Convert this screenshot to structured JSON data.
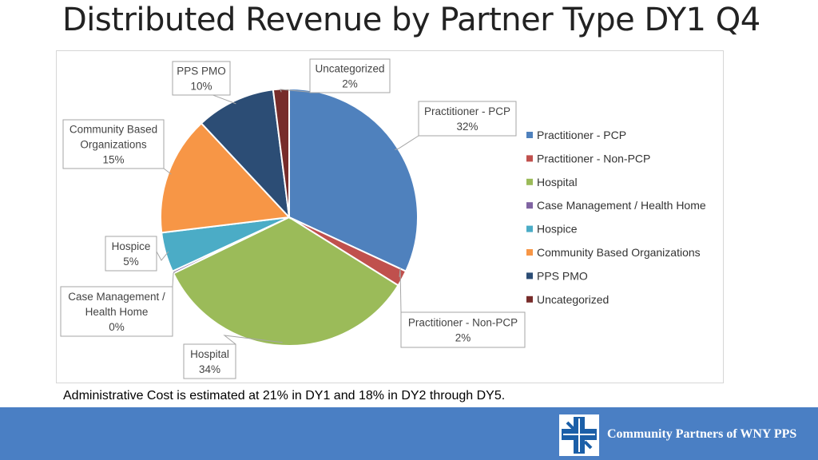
{
  "page": {
    "title": "Distributed Revenue by Partner Type DY1 Q4",
    "footnote": "Administrative Cost is estimated at 21% in DY1 and 18% in DY2 through DY5.",
    "footer_brand": "Community Partners of WNY PPS",
    "footer_color": "#4a7fc4"
  },
  "chart_data": {
    "type": "pie",
    "title": "",
    "legend_position": "right",
    "start_angle_deg": 0,
    "direction": "clockwise",
    "slices": [
      {
        "name": "Practitioner - PCP",
        "value": 32,
        "label_value": "32%",
        "color": "#4f81bd"
      },
      {
        "name": "Practitioner - Non-PCP",
        "value": 2,
        "label_value": "2%",
        "color": "#c0504d"
      },
      {
        "name": "Hospital",
        "value": 34,
        "label_value": "34%",
        "color": "#9bbb59"
      },
      {
        "name": "Case Management / Health Home",
        "value": 0.3,
        "label_value": "0%",
        "color": "#8064a2"
      },
      {
        "name": "Hospice",
        "value": 5,
        "label_value": "5%",
        "color": "#4bacc6"
      },
      {
        "name": "Community Based Organizations",
        "value": 15,
        "label_value": "15%",
        "color": "#f79646"
      },
      {
        "name": "PPS PMO",
        "value": 10,
        "label_value": "10%",
        "color": "#2c4d75"
      },
      {
        "name": "Uncategorized",
        "value": 2,
        "label_value": "2%",
        "color": "#772c2a"
      }
    ]
  }
}
